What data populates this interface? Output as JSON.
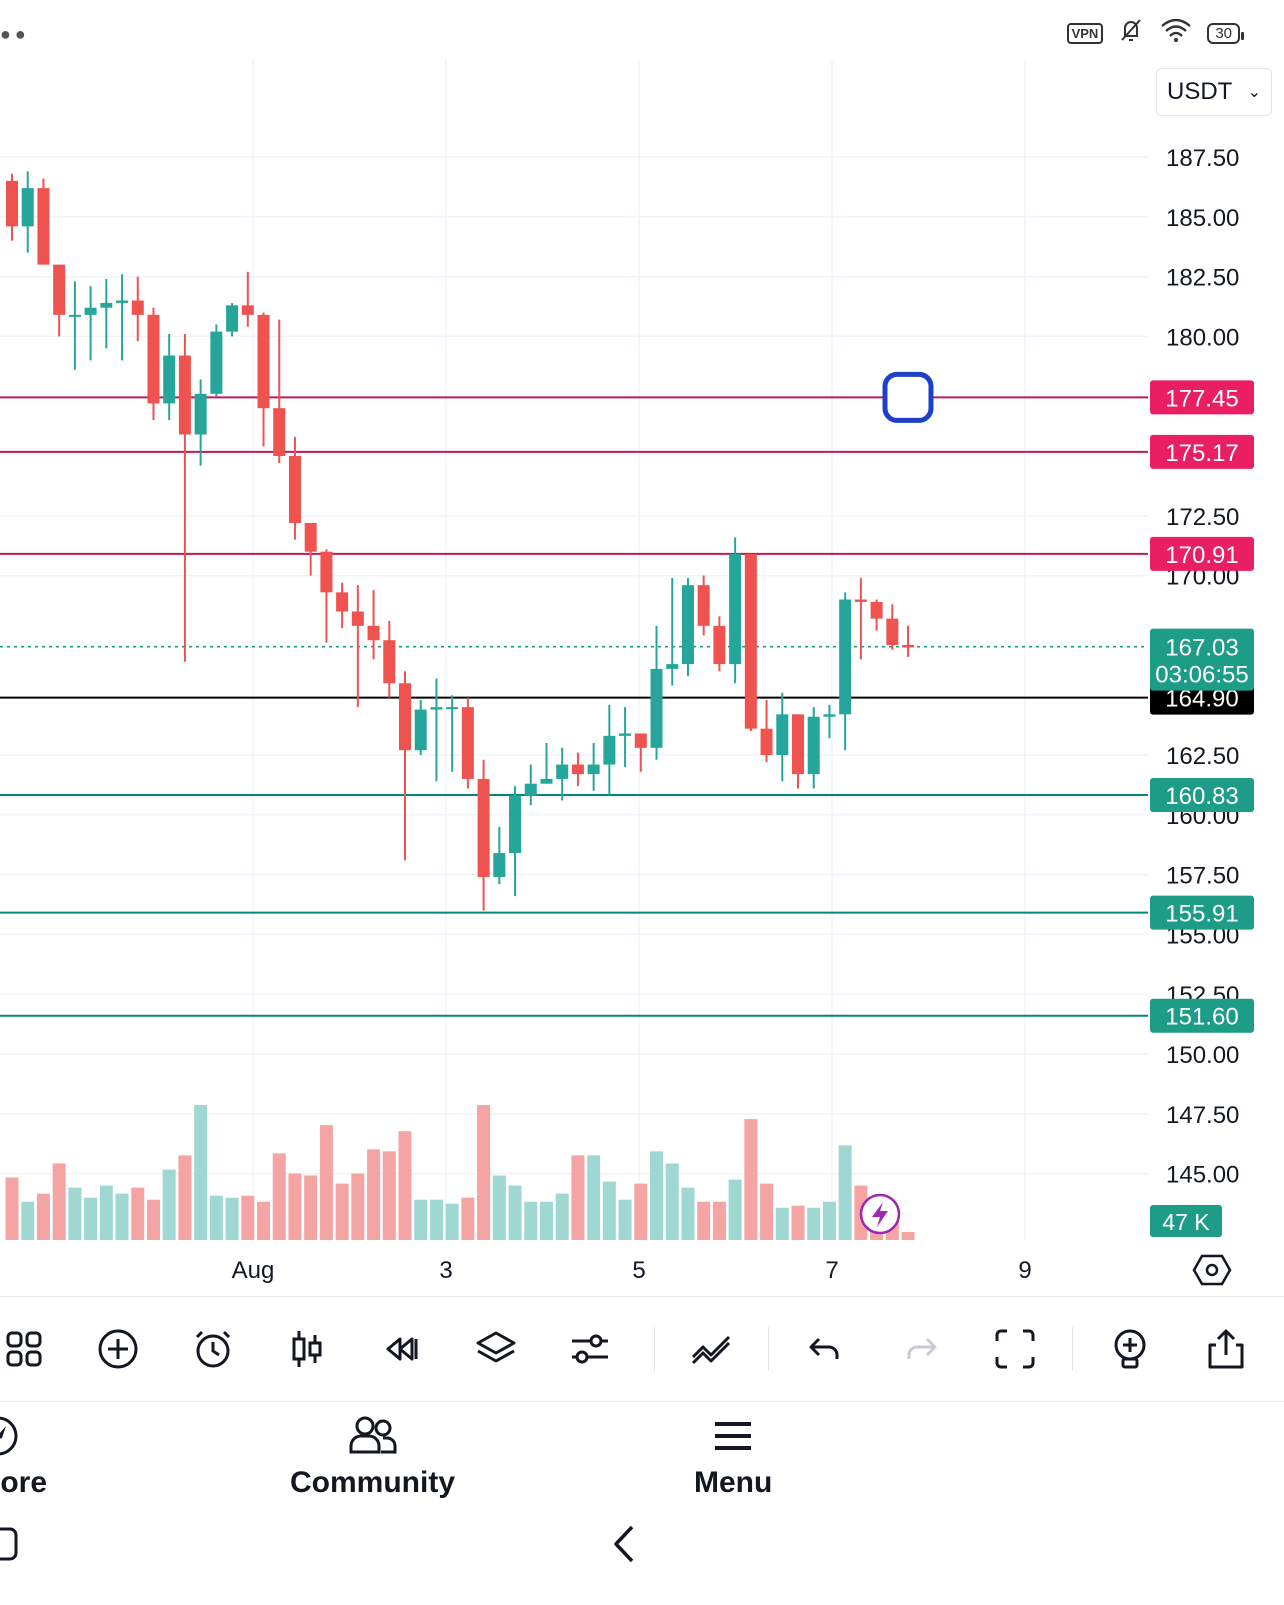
{
  "status_bar": {
    "vpn_label": "VPN",
    "battery_label": "30"
  },
  "currency_selector": {
    "value": "USDT",
    "chevron_icon": "chevron-down-icon"
  },
  "colors": {
    "up": "#26a69a",
    "down": "#ef5350",
    "up_volume": "#9fd8d2",
    "down_volume": "#f4a5a3",
    "resistance_line": "#c2185b",
    "support_line": "#00897b",
    "last_price": "#1d9c87",
    "black_line": "#000000"
  },
  "chart_data": {
    "type": "candlestick",
    "y_ticks": [
      "187.50",
      "185.00",
      "182.50",
      "180.00",
      "172.50",
      "170.00",
      "162.50",
      "160.00",
      "157.50",
      "155.00",
      "152.50",
      "150.00",
      "147.50",
      "145.00"
    ],
    "x_ticks": [
      "Aug",
      "3",
      "5",
      "7",
      "9"
    ],
    "ylim": [
      143.0,
      189.0
    ],
    "horizontal_lines": [
      {
        "price": 177.45,
        "label": "177.45",
        "style": "resistance"
      },
      {
        "price": 175.17,
        "label": "175.17",
        "style": "resistance"
      },
      {
        "price": 170.91,
        "label": "170.91",
        "style": "resistance"
      },
      {
        "price": 164.9,
        "label": "164.90",
        "style": "black"
      },
      {
        "price": 160.83,
        "label": "160.83",
        "style": "support"
      },
      {
        "price": 155.91,
        "label": "155.91",
        "style": "support"
      },
      {
        "price": 151.6,
        "label": "151.60",
        "style": "support"
      }
    ],
    "last_price": {
      "price": 167.03,
      "label": "167.03",
      "countdown": "03:06:55"
    },
    "volume_label": "47 K",
    "candles": [
      [
        186.5,
        186.8,
        184.0,
        184.6
      ],
      [
        184.6,
        186.9,
        183.5,
        186.2
      ],
      [
        186.2,
        186.6,
        183.0,
        183.0
      ],
      [
        183.0,
        183.0,
        180.0,
        180.9
      ],
      [
        180.9,
        182.3,
        178.6,
        180.9
      ],
      [
        180.9,
        182.1,
        179.0,
        181.2
      ],
      [
        181.2,
        182.4,
        179.5,
        181.4
      ],
      [
        181.4,
        182.6,
        179.0,
        181.5
      ],
      [
        181.5,
        182.5,
        179.8,
        180.9
      ],
      [
        180.9,
        181.2,
        176.5,
        177.2
      ],
      [
        177.2,
        180.1,
        176.5,
        179.2
      ],
      [
        179.2,
        180.1,
        166.4,
        175.9
      ],
      [
        175.9,
        178.2,
        174.6,
        177.6
      ],
      [
        177.6,
        180.5,
        177.5,
        180.2
      ],
      [
        180.2,
        181.4,
        180.0,
        181.3
      ],
      [
        181.3,
        182.7,
        180.4,
        180.9
      ],
      [
        180.9,
        181.0,
        175.4,
        177.0
      ],
      [
        177.0,
        180.7,
        174.7,
        175.0
      ],
      [
        175.0,
        175.8,
        171.5,
        172.2
      ],
      [
        172.2,
        172.2,
        170.0,
        171.0
      ],
      [
        171.0,
        171.1,
        167.2,
        169.3
      ],
      [
        169.3,
        169.7,
        167.8,
        168.5
      ],
      [
        168.5,
        169.6,
        164.5,
        167.9
      ],
      [
        167.9,
        169.4,
        166.5,
        167.3
      ],
      [
        167.3,
        168.1,
        164.9,
        165.5
      ],
      [
        165.5,
        166.0,
        158.1,
        162.7
      ],
      [
        162.7,
        164.8,
        162.5,
        164.4
      ],
      [
        164.4,
        165.7,
        161.4,
        164.5
      ],
      [
        164.5,
        165.0,
        161.8,
        164.5
      ],
      [
        164.5,
        164.9,
        161.1,
        161.5
      ],
      [
        161.5,
        162.3,
        156.0,
        157.4
      ],
      [
        157.4,
        159.5,
        157.1,
        158.4
      ],
      [
        158.4,
        161.2,
        156.6,
        160.8
      ],
      [
        160.8,
        162.1,
        160.4,
        161.3
      ],
      [
        161.3,
        163.0,
        161.3,
        161.5
      ],
      [
        161.5,
        162.8,
        160.6,
        162.1
      ],
      [
        162.1,
        162.6,
        161.2,
        161.7
      ],
      [
        161.7,
        163.0,
        161.0,
        162.1
      ],
      [
        162.1,
        164.6,
        160.8,
        163.3
      ],
      [
        163.3,
        164.5,
        162.0,
        163.4
      ],
      [
        163.4,
        163.4,
        161.8,
        162.8
      ],
      [
        162.8,
        167.9,
        162.3,
        166.1
      ],
      [
        166.1,
        169.9,
        165.4,
        166.3
      ],
      [
        166.3,
        169.9,
        165.8,
        169.6
      ],
      [
        169.6,
        170.0,
        167.5,
        167.9
      ],
      [
        167.9,
        168.3,
        166.0,
        166.3
      ],
      [
        166.3,
        171.6,
        165.5,
        170.9
      ],
      [
        170.9,
        170.9,
        163.5,
        163.6
      ],
      [
        163.6,
        164.8,
        162.2,
        162.5
      ],
      [
        162.5,
        165.1,
        161.4,
        164.2
      ],
      [
        164.2,
        164.2,
        161.1,
        161.7
      ],
      [
        161.7,
        164.5,
        161.1,
        164.1
      ],
      [
        164.1,
        164.6,
        163.2,
        164.2
      ],
      [
        164.2,
        169.3,
        162.7,
        169.0
      ],
      [
        169.0,
        169.9,
        166.5,
        168.9
      ],
      [
        168.9,
        169.0,
        167.7,
        168.2
      ],
      [
        168.2,
        168.8,
        166.9,
        167.1
      ],
      [
        167.1,
        167.9,
        166.6,
        167.0
      ]
    ],
    "volume": [
      31,
      19,
      23,
      38,
      26,
      21,
      27,
      23,
      26,
      20,
      35,
      42,
      67,
      22,
      21,
      22,
      19,
      43,
      33,
      32,
      57,
      28,
      33,
      45,
      44,
      54,
      20,
      20,
      18,
      21,
      67,
      32,
      27,
      19,
      19,
      23,
      42,
      42,
      29,
      20,
      28,
      44,
      38,
      26,
      19,
      19,
      30,
      60,
      28,
      16,
      17,
      16,
      19,
      47,
      27,
      12,
      9,
      4
    ]
  },
  "toolbar": {
    "icons": [
      "grid-icon",
      "add-indicator-icon",
      "alarm-icon",
      "candle-style-icon",
      "replay-icon",
      "layers-icon",
      "settings-sliders-icon",
      "drawing-tools-icon",
      "undo-icon",
      "redo-icon",
      "fullscreen-icon",
      "idea-icon",
      "share-icon"
    ]
  },
  "bottom_nav": {
    "explore_label": "lore",
    "community_label": "Community",
    "menu_label": "Menu"
  }
}
